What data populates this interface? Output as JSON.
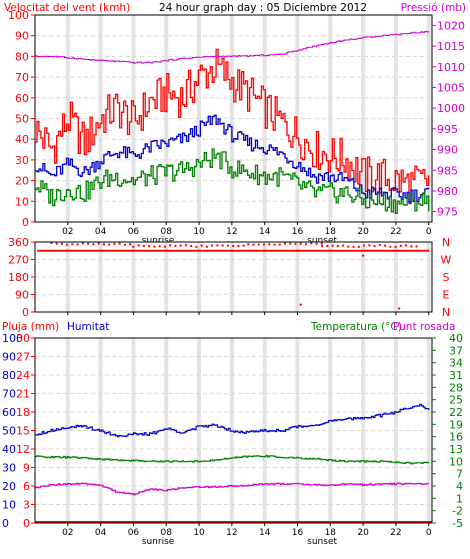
{
  "colors": {
    "background": "#ffffff",
    "frame": "#000000",
    "plot_bg": "#ffffff",
    "grid": "#d8d8d8",
    "wind_red": "#ff0000",
    "wind_blue": "#0000cc",
    "wind_green": "#008000",
    "pressure": "#cc00cc",
    "direction": "#ff0000",
    "rain": "#ff0000",
    "humidity": "#0000cc",
    "temperature": "#008000",
    "dew_point": "#cc00cc",
    "sun_bands": "#c0c0c0",
    "label_red": "#ff0000",
    "label_blue": "#0000cc",
    "label_green": "#008000",
    "label_magenta": "#cc00cc"
  },
  "chart_data": [
    {
      "type": "line",
      "title": "24 hour graph day : 05 Diciembre 2012",
      "left_axis_label": "Velocitat del vent (kmh)",
      "right_axis_label": "Pressió (mb)",
      "x_tick_labels": [
        "02",
        "04",
        "06",
        "08",
        "10",
        "12",
        "14",
        "16",
        "18",
        "20",
        "22",
        "0"
      ],
      "x_ticks_hour": [
        2,
        4,
        6,
        8,
        10,
        12,
        14,
        16,
        18,
        20,
        22,
        24
      ],
      "xlim_hours": [
        0,
        24.2
      ],
      "annotations": [
        {
          "text": "sunrise",
          "hour": 7.5
        },
        {
          "text": "sunset",
          "hour": 17.5
        }
      ],
      "left_ticks": [
        0,
        10,
        20,
        30,
        40,
        50,
        60,
        70,
        80,
        90,
        100
      ],
      "ylim_left": [
        0,
        100
      ],
      "right_ticks": [
        975,
        980,
        985,
        990,
        995,
        1000,
        1005,
        1010,
        1015,
        1020
      ],
      "ylim_right": [
        972.5,
        1022.5
      ],
      "series": [
        {
          "axis": "left",
          "color_key": "wind_red",
          "x": [
            0,
            1,
            2,
            3,
            4,
            5,
            6,
            7,
            8,
            9,
            10,
            11,
            12,
            13,
            14,
            15,
            16,
            17,
            18,
            19,
            20,
            21,
            22,
            23,
            24
          ],
          "values": [
            45,
            35,
            50,
            38,
            50,
            55,
            48,
            58,
            62,
            60,
            70,
            75,
            68,
            62,
            55,
            48,
            42,
            35,
            32,
            30,
            22,
            22,
            20,
            18,
            20
          ]
        },
        {
          "axis": "left",
          "color_key": "wind_blue",
          "x": [
            0,
            1,
            2,
            3,
            4,
            5,
            6,
            7,
            8,
            9,
            10,
            11,
            12,
            13,
            14,
            15,
            16,
            17,
            18,
            19,
            20,
            21,
            22,
            23,
            24
          ],
          "values": [
            28,
            22,
            28,
            24,
            30,
            34,
            32,
            36,
            38,
            40,
            45,
            50,
            42,
            38,
            36,
            33,
            28,
            22,
            22,
            20,
            14,
            14,
            13,
            13,
            14
          ]
        },
        {
          "axis": "left",
          "color_key": "wind_green",
          "x": [
            0,
            1,
            2,
            3,
            4,
            5,
            6,
            7,
            8,
            9,
            10,
            11,
            12,
            13,
            14,
            15,
            16,
            17,
            18,
            19,
            20,
            21,
            22,
            23,
            24
          ],
          "values": [
            18,
            12,
            16,
            14,
            20,
            22,
            20,
            22,
            24,
            25,
            28,
            32,
            26,
            24,
            22,
            22,
            18,
            14,
            14,
            14,
            10,
            10,
            9,
            10,
            10
          ]
        },
        {
          "axis": "right",
          "color_key": "pressure",
          "x": [
            0,
            1,
            2,
            3,
            4,
            5,
            6,
            7,
            8,
            9,
            10,
            11,
            12,
            13,
            14,
            15,
            16,
            17,
            18,
            19,
            20,
            21,
            22,
            23,
            24
          ],
          "values": [
            1012.5,
            1012.5,
            1012.2,
            1011.8,
            1011.5,
            1011.3,
            1011.0,
            1011.0,
            1011.5,
            1012.0,
            1012.3,
            1012.5,
            1012.5,
            1012.6,
            1012.8,
            1013.0,
            1014.0,
            1015.0,
            1015.8,
            1016.5,
            1017.0,
            1017.5,
            1017.8,
            1018.2,
            1018.5
          ]
        }
      ]
    },
    {
      "type": "scatter",
      "right_labels": [
        "N",
        "W",
        "S",
        "E",
        "N"
      ],
      "left_ticks": [
        0,
        90,
        180,
        270,
        360
      ],
      "ylim": [
        0,
        360
      ],
      "x_ticks_hour": [
        2,
        4,
        6,
        8,
        10,
        12,
        14,
        16,
        18,
        20,
        22,
        24
      ],
      "xlim_hours": [
        0,
        24.2
      ],
      "series": [
        {
          "name": "",
          "color_key": "direction",
          "bands": [
            {
              "from": 0.2,
              "to": 24,
              "value": 315
            },
            {
              "from": 1.0,
              "to": 6.0,
              "value": 350
            },
            {
              "from": 6.0,
              "to": 13.0,
              "value": 340
            },
            {
              "from": 13.0,
              "to": 17.5,
              "value": 350
            },
            {
              "from": 17.5,
              "to": 23.5,
              "value": 340
            }
          ],
          "points": [
            [
              16.2,
              38
            ],
            [
              22.2,
              18
            ],
            [
              20.0,
              290
            ]
          ]
        }
      ]
    },
    {
      "type": "line",
      "labels": {
        "left1": "Pluja (mm)",
        "left2": "Humitat",
        "right": "Temperatura (°C)",
        "right_tail": "Punt rosada"
      },
      "rain_ticks": [
        0,
        3,
        6,
        9,
        12,
        15,
        18,
        21,
        24,
        27,
        30
      ],
      "humidity_ticks": [
        0,
        10,
        20,
        30,
        40,
        50,
        60,
        70,
        80,
        90,
        100
      ],
      "temperature_ticks": [
        -5,
        -2,
        1,
        4,
        7,
        10,
        13,
        16,
        19,
        22,
        25,
        28,
        31,
        34,
        37,
        40
      ],
      "ylim_rain": [
        0,
        30
      ],
      "ylim_humidity": [
        0,
        100
      ],
      "ylim_temperature": [
        -5,
        40
      ],
      "x_tick_labels": [
        "02",
        "04",
        "06",
        "08",
        "10",
        "12",
        "14",
        "16",
        "18",
        "20",
        "22",
        "0"
      ],
      "x_ticks_hour": [
        2,
        4,
        6,
        8,
        10,
        12,
        14,
        16,
        18,
        20,
        22,
        24
      ],
      "xlim_hours": [
        0,
        24.2
      ],
      "annotations": [
        {
          "text": "sunrise",
          "hour": 7.5
        },
        {
          "text": "sunset",
          "hour": 17.5
        }
      ],
      "series": [
        {
          "axis": "humidity",
          "color_key": "humidity",
          "x": [
            0,
            1,
            2,
            3,
            4,
            5,
            6,
            7,
            8,
            9,
            10,
            11,
            12,
            13,
            14,
            15,
            16,
            17,
            18,
            19,
            20,
            21,
            22,
            23,
            23.4,
            24
          ],
          "values": [
            48,
            50,
            52,
            52,
            50,
            47,
            48,
            48,
            51,
            49,
            52,
            53,
            50,
            49,
            50,
            50,
            52,
            53,
            55,
            56,
            57,
            58,
            60,
            63,
            64,
            61
          ]
        },
        {
          "axis": "temperature",
          "color_key": "temperature",
          "x": [
            0,
            1,
            2,
            3,
            4,
            5,
            6,
            7,
            8,
            9,
            10,
            11,
            12,
            13,
            14,
            15,
            16,
            17,
            18,
            19,
            20,
            21,
            22,
            23,
            24
          ],
          "values": [
            11.2,
            11.0,
            11.0,
            10.8,
            10.5,
            10.3,
            10.2,
            10.0,
            10.0,
            10.0,
            10.0,
            10.3,
            10.8,
            11.2,
            11.3,
            11.0,
            10.8,
            10.6,
            10.3,
            10.0,
            10.0,
            10.0,
            9.8,
            9.5,
            9.7
          ]
        },
        {
          "axis": "temperature",
          "color_key": "dew_point",
          "x": [
            0,
            1,
            2,
            3,
            4,
            5,
            6,
            7,
            8,
            9,
            10,
            11,
            12,
            13,
            14,
            15,
            16,
            17,
            18,
            19,
            20,
            21,
            22,
            23,
            24
          ],
          "values": [
            3.5,
            4.3,
            4.5,
            4.5,
            4.2,
            2.5,
            2.0,
            3.2,
            3.0,
            3.5,
            3.8,
            3.8,
            4.0,
            4.2,
            4.5,
            4.5,
            4.5,
            4.3,
            4.2,
            4.5,
            4.3,
            4.5,
            4.5,
            4.6,
            4.4
          ]
        },
        {
          "axis": "rain",
          "color_key": "rain",
          "x": [
            0,
            24
          ],
          "values": [
            0,
            0
          ]
        }
      ]
    }
  ]
}
